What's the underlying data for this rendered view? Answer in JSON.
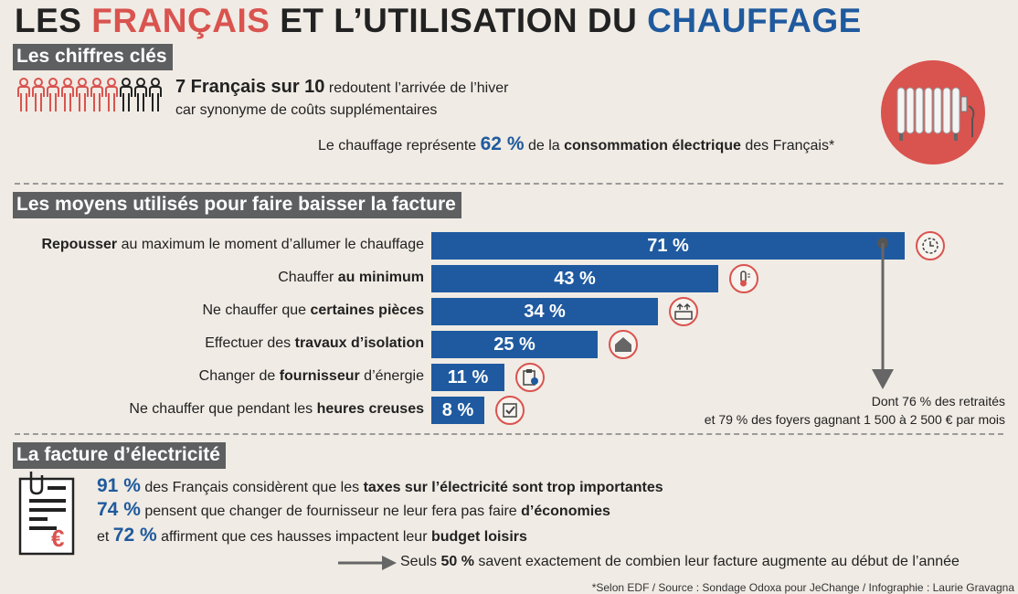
{
  "title": {
    "part1": "LES ",
    "part2": "FRANÇAIS",
    "part3": " ET L’UTILISATION DU ",
    "part4": "CHAUFFAGE"
  },
  "section1": {
    "header": "Les chiffres clés",
    "stat1_bold": "7 Français sur 10",
    "stat1_rest": " redoutent l’arrivée de l’hiver",
    "stat1_line2": "car synonyme de coûts supplémentaires",
    "stat2_pre": "Le chauffage représente ",
    "stat2_pct": "62 %",
    "stat2_mid": " de la ",
    "stat2_bold": "consommation électrique",
    "stat2_post": " des Français*"
  },
  "section2": {
    "header": "Les moyens utilisés pour faire baisser la facture",
    "items": [
      {
        "pre": "",
        "bold": "Repousser",
        "post": " au maximum le moment d’allumer le chauffage",
        "value_label": "71 %",
        "icon": "clock-icon"
      },
      {
        "pre": "Chauffer ",
        "bold": "au minimum",
        "post": "",
        "value_label": "43 %",
        "icon": "thermometer-icon"
      },
      {
        "pre": "Ne chauffer que ",
        "bold": "certaines pièces",
        "post": "",
        "value_label": "34 %",
        "icon": "heater-icon"
      },
      {
        "pre": "Effectuer des ",
        "bold": "travaux d’isolation",
        "post": "",
        "value_label": "25 %",
        "icon": "house-icon"
      },
      {
        "pre": "Changer de ",
        "bold": "fournisseur",
        "post": " d’énergie",
        "value_label": "11 %",
        "icon": "clipboard-icon"
      },
      {
        "pre": "Ne chauffer que pendant les ",
        "bold": "heures creuses",
        "post": "",
        "value_label": "8 %",
        "icon": "checkbox-icon"
      }
    ],
    "note_line1": "Dont 76 % des retraités",
    "note_line2": "et 79 % des foyers gagnant 1 500 à 2 500 € par mois"
  },
  "section3": {
    "header": "La facture d’électricité",
    "fact1_pct": "91 %",
    "fact1_pre": " des Français considèrent que les ",
    "fact1_bold": "taxes sur l’électricité sont trop importantes",
    "fact2_pct": "74 %",
    "fact2_pre": " pensent que changer de fournisseur ne leur fera pas faire ",
    "fact2_bold": "d’économies",
    "fact3_pre": "et ",
    "fact3_pct": "72 %",
    "fact3_mid": " affirment que ces hausses impactent leur ",
    "fact3_bold": "budget loisirs",
    "final_pre": "Seuls ",
    "final_bold": "50 %",
    "final_post": " savent exactement de combien leur facture augmente au début de l’année"
  },
  "footer": "*Selon EDF / Source : Sondage Odoxa pour JeChange / Infographie : Laurie Gravagna",
  "chart_data": {
    "type": "bar",
    "title": "Les moyens utilisés pour faire baisser la facture",
    "categories": [
      "Repousser au maximum le moment d’allumer le chauffage",
      "Chauffer au minimum",
      "Ne chauffer que certaines pièces",
      "Effectuer des travaux d’isolation",
      "Changer de fournisseur d’énergie",
      "Ne chauffer que pendant les heures creuses"
    ],
    "values": [
      71,
      43,
      34,
      25,
      11,
      8
    ],
    "unit": "%"
  },
  "colors": {
    "accent_blue": "#1f5a9e",
    "accent_red": "#d9534f",
    "header_gray": "#5d5f61"
  }
}
